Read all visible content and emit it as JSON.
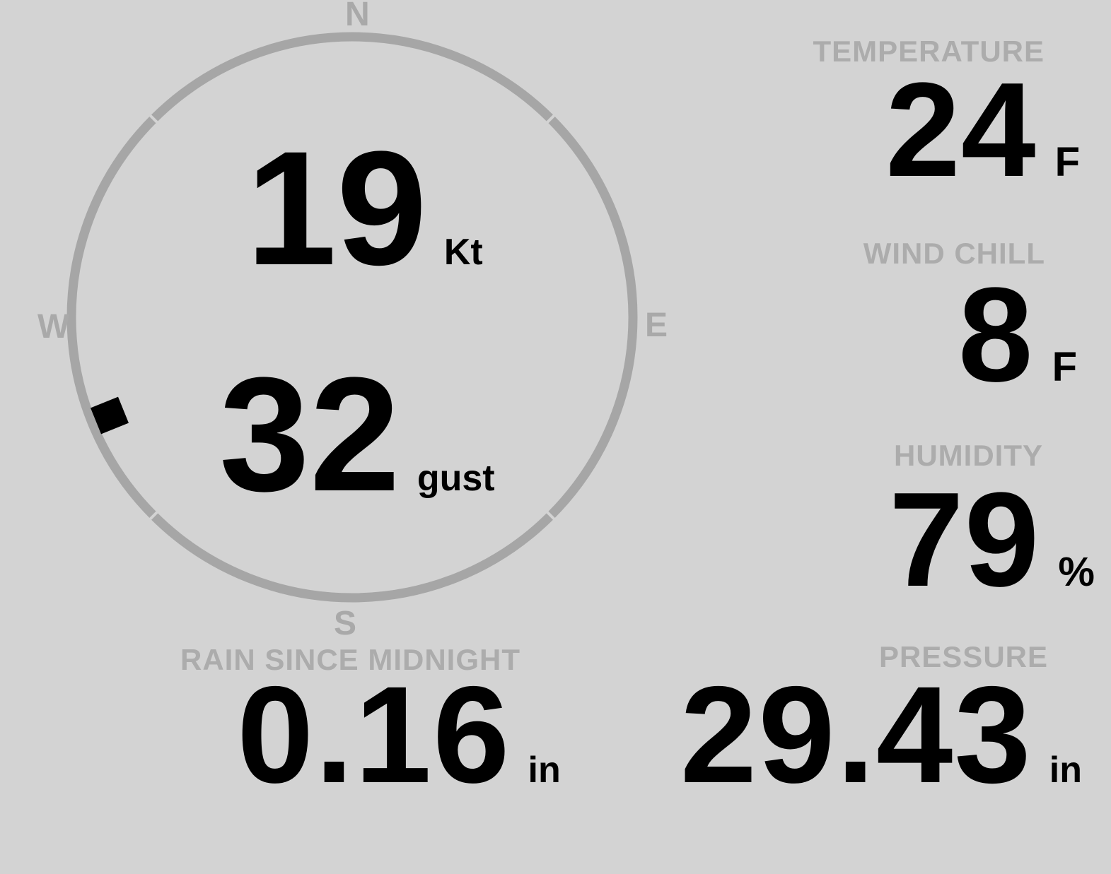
{
  "theme": {
    "background": "#d3d3d3",
    "muted_gray": "#acacac",
    "ring_gray": "#a6a6a6",
    "value_black": "#000000"
  },
  "compass": {
    "cardinals": {
      "n": "N",
      "e": "E",
      "s": "S",
      "w": "W"
    },
    "wind_speed": {
      "value": "19",
      "unit": "Kt"
    },
    "wind_gust": {
      "value": "32",
      "unit": "gust"
    },
    "direction_degrees": 248
  },
  "metrics": {
    "temperature": {
      "label": "TEMPERATURE",
      "value": "24",
      "unit": "F"
    },
    "wind_chill": {
      "label": "WIND CHILL",
      "value": "8",
      "unit": "F"
    },
    "humidity": {
      "label": "HUMIDITY",
      "value": "79",
      "unit": "%"
    },
    "rain_since_midnight": {
      "label": "RAIN SINCE MIDNIGHT",
      "value": "0.16",
      "unit": "in"
    },
    "pressure": {
      "label": "PRESSURE",
      "value": "29.43",
      "unit": "in"
    }
  }
}
